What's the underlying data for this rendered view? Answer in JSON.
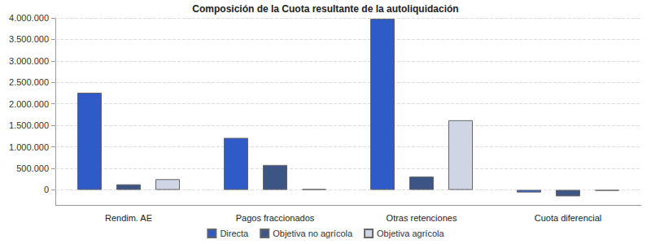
{
  "chart_data": {
    "type": "bar",
    "title": "Composición de la Cuota resultante de la autoliquidación",
    "categories": [
      "Rendim. AE",
      "Pagos fraccionados",
      "Otras retenciones",
      "Cuota diferencial"
    ],
    "series": [
      {
        "name": "Directa",
        "color": "#2f5bc8",
        "values": [
          2260000,
          1210000,
          3980000,
          -60000
        ]
      },
      {
        "name": "Objetiva no agrícola",
        "color": "#3d5584",
        "values": [
          130000,
          580000,
          310000,
          -150000
        ]
      },
      {
        "name": "Objetiva agrícola",
        "color": "#d0d5e6",
        "values": [
          250000,
          20000,
          1620000,
          -20000
        ]
      }
    ],
    "ylim": [
      -350000,
      4000000
    ],
    "yticks": [
      0,
      {
        "value": 500000,
        "label": "500.000"
      },
      {
        "value": 1000000,
        "label": "1.000.000"
      },
      {
        "value": 1500000,
        "label": "1.500.000"
      },
      {
        "value": 2000000,
        "label": "2.000.000"
      },
      {
        "value": 2500000,
        "label": "2.500.000"
      },
      {
        "value": 3000000,
        "label": "3.000.000"
      },
      {
        "value": 3500000,
        "label": "3.500.000"
      },
      {
        "value": 4000000,
        "label": "4.000.000"
      }
    ],
    "grid": true,
    "legend": "bottom"
  }
}
